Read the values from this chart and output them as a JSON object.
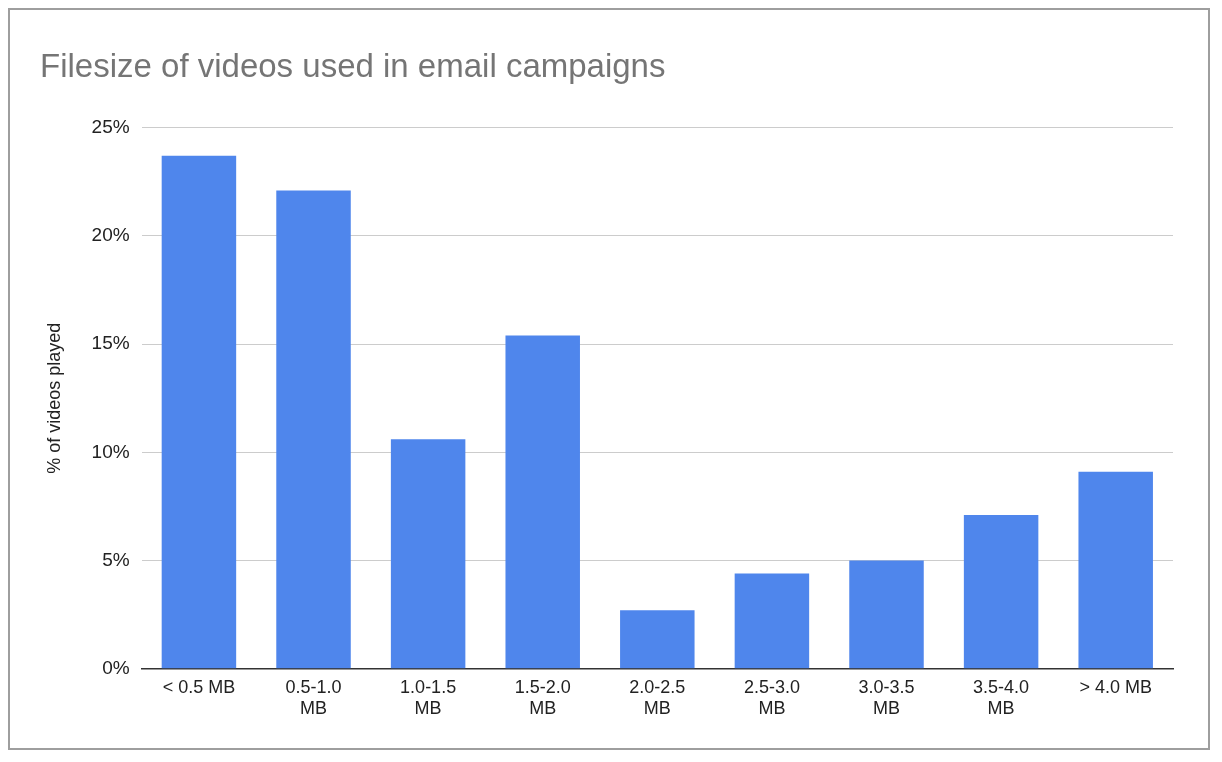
{
  "chart_data": {
    "type": "bar",
    "title": "Filesize of videos used in email campaigns",
    "ylabel": "% of videos played",
    "categories": [
      "< 0.5 MB",
      "0.5-1.0 MB",
      "1.0-1.5 MB",
      "1.5-2.0 MB",
      "2.0-2.5 MB",
      "2.5-3.0 MB",
      "3.0-3.5 MB",
      "3.5-4.0 MB",
      "> 4.0 MB"
    ],
    "values": [
      23.7,
      22.1,
      10.6,
      15.4,
      2.7,
      4.4,
      5.0,
      7.1,
      9.1
    ],
    "color": "#4f86ec",
    "ylim": [
      0,
      25
    ],
    "yticks": [
      {
        "value": 0,
        "label": "0%"
      },
      {
        "value": 5,
        "label": "5%"
      },
      {
        "value": 10,
        "label": "10%"
      },
      {
        "value": 15,
        "label": "15%"
      },
      {
        "value": 20,
        "label": "20%"
      },
      {
        "value": 25,
        "label": "25%"
      }
    ],
    "grid": "y",
    "legend": false
  }
}
